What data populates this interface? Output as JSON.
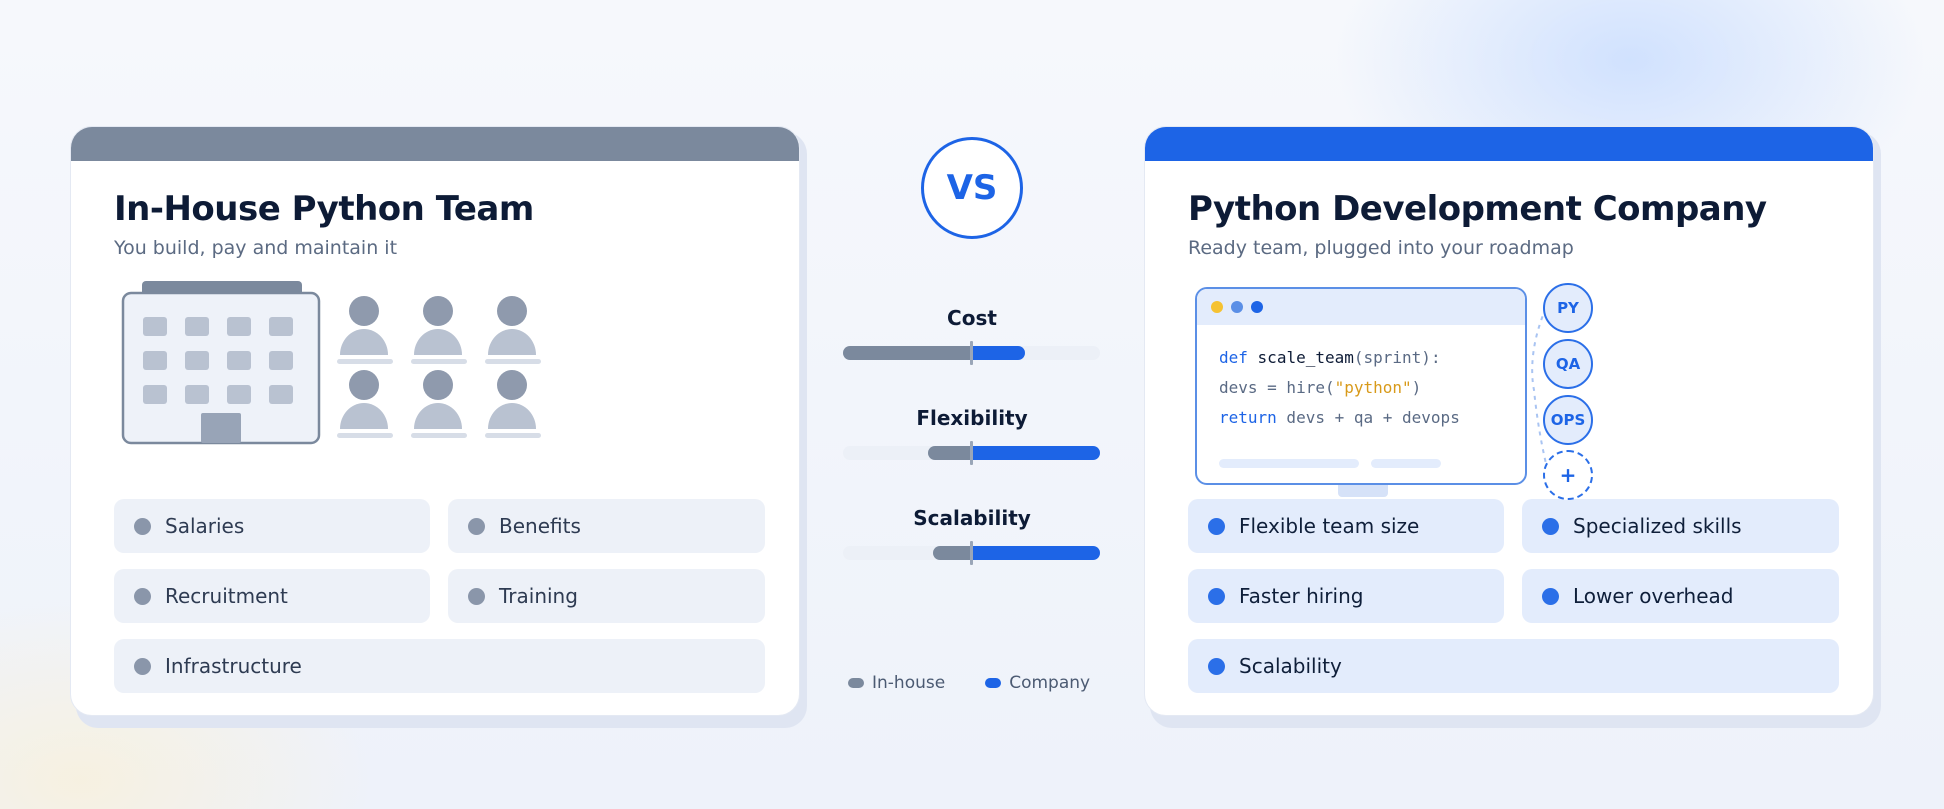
{
  "left_card": {
    "title": "In-House Python Team",
    "subtitle": "You build, pay and maintain it",
    "accent_color": "#7b899d",
    "illustration": {
      "building_icon": "office-building-icon",
      "people_icon": "person-icon",
      "people_count": 6
    },
    "items": [
      "Salaries",
      "Benefits",
      "Recruitment",
      "Training",
      "Infrastructure"
    ]
  },
  "comparison": {
    "vs_label": "VS",
    "metrics": [
      {
        "label": "Cost",
        "in_house": 0.5,
        "company": 0.21
      },
      {
        "label": "Flexibility",
        "in_house": 0.17,
        "company": 0.5
      },
      {
        "label": "Scalability",
        "in_house": 0.15,
        "company": 0.5
      }
    ],
    "legend": {
      "in_house": "In-house",
      "company": "Company"
    },
    "colors": {
      "in_house": "#7b899d",
      "company": "#1d64e6"
    }
  },
  "right_card": {
    "title": "Python Development Company",
    "subtitle": "Ready team, plugged into your roadmap",
    "accent_color": "#1d64e6",
    "code": {
      "window_dots": [
        "#f5c232",
        "#5b8fe6",
        "#1d64e6"
      ],
      "line1": {
        "kw": "def",
        "fn": "scale_team",
        "rest": "(sprint):"
      },
      "line2": {
        "pre": "devs = hire(",
        "str": "\"python\"",
        "post": ")"
      },
      "line3": {
        "kw": "return",
        "rest": " devs + qa + devops"
      }
    },
    "badges": [
      "PY",
      "QA",
      "OPS",
      "+"
    ],
    "items": [
      "Flexible team size",
      "Specialized skills",
      "Faster hiring",
      "Lower overhead",
      "Scalability"
    ]
  }
}
